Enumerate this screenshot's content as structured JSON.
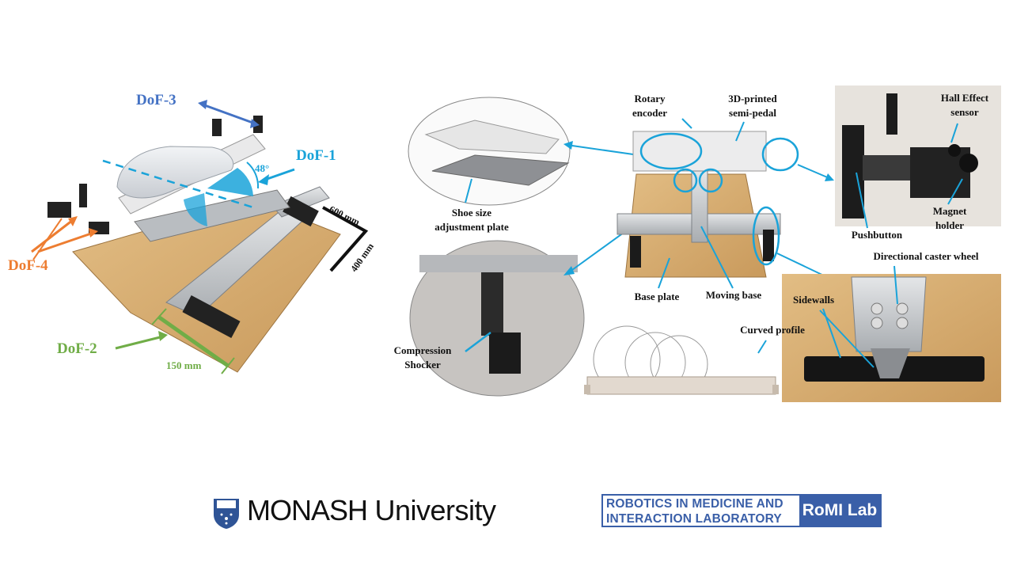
{
  "labels": {
    "dof1": "DoF-1",
    "dof2": "DoF-2",
    "dof3": "DoF-3",
    "dof4": "DoF-4",
    "angle": "48°",
    "dim_600": "600 mm",
    "dim_400": "400 mm",
    "dim_150": "150 mm",
    "rotary_encoder_1": "Rotary",
    "rotary_encoder_2": "encoder",
    "semi_pedal_1": "3D-printed",
    "semi_pedal_2": "semi-pedal",
    "hall_effect_1": "Hall Effect",
    "hall_effect_2": "sensor",
    "magnet_holder_1": "Magnet",
    "magnet_holder_2": "holder",
    "pushbutton": "Pushbutton",
    "shoe_plate_1": "Shoe size",
    "shoe_plate_2": "adjustment plate",
    "base_plate": "Base plate",
    "moving_base": "Moving base",
    "caster_wheel": "Directional caster wheel",
    "sidewalls": "Sidewalls",
    "curved_profile": "Curved profile",
    "compression_1": "Compression",
    "compression_2": "Shocker"
  },
  "logos": {
    "monash_strong": "MONASH",
    "monash_rest": " University",
    "romi_line1": "ROBOTICS IN MEDICINE AND",
    "romi_line2": "INTERACTION LABORATORY",
    "romi_tag": "RoMI Lab"
  },
  "colors": {
    "dof1": "#1aa3d9",
    "dof2": "#70ad47",
    "dof3": "#4472c4",
    "dof4": "#ed7d31",
    "callout": "#1aa3d9",
    "wood": "#d9b27a",
    "aluminium": "#c9ccd0",
    "romi_blue": "#3a5fa8"
  },
  "icons": {
    "crest": "monash-crest-icon"
  }
}
